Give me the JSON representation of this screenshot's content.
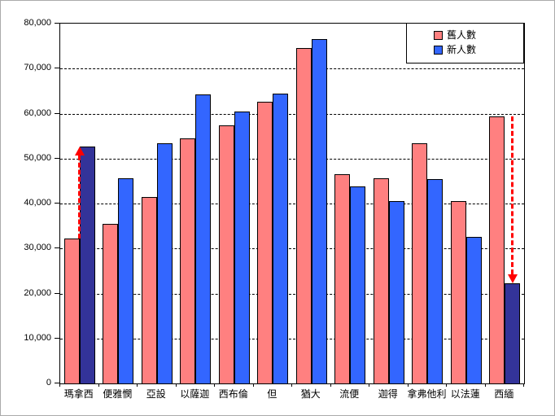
{
  "chart_data": {
    "type": "bar",
    "title": "",
    "categories": [
      "瑪拿西",
      "便雅憫",
      "亞設",
      "以薩迦",
      "西布倫",
      "但",
      "猶大",
      "流便",
      "迦得",
      "拿弗他利",
      "以法蓮",
      "西緬"
    ],
    "series": [
      {
        "name": "舊人數",
        "color": "#FF8080",
        "values": [
          32200,
          35400,
          41500,
          54400,
          57400,
          62700,
          74600,
          46500,
          45650,
          53400,
          40500,
          59300
        ]
      },
      {
        "name": "新人數",
        "color": "#3366FF",
        "values": [
          52700,
          45600,
          53400,
          64300,
          60500,
          64400,
          76500,
          43730,
          40500,
          45400,
          32500,
          22200
        ]
      }
    ],
    "highlight": {
      "series_index": 1,
      "category_indexes": [
        0,
        11
      ],
      "color": "#333399"
    },
    "annotations": [
      {
        "type": "arrow",
        "direction": "up",
        "category_index": 0,
        "from": 32200,
        "to": 52700,
        "color": "#FF0000",
        "style": "dashed"
      },
      {
        "type": "arrow",
        "direction": "down",
        "category_index": 11,
        "from": 59300,
        "to": 22200,
        "color": "#FF0000",
        "style": "dashed"
      }
    ],
    "xlabel": "",
    "ylabel": "",
    "ylim": [
      0,
      80000
    ],
    "ytick_step": 10000,
    "ytick_labels": [
      "0",
      "10,000",
      "20,000",
      "30,000",
      "40,000",
      "50,000",
      "60,000",
      "70,000",
      "80,000"
    ],
    "grid": "horizontal-dashed",
    "legend_position": "top-right-inside"
  },
  "legend": {
    "items": [
      {
        "label": "舊人數",
        "color": "#FF8080"
      },
      {
        "label": "新人數",
        "color": "#3366FF"
      }
    ]
  },
  "colors": {
    "old_series": "#FF8080",
    "new_series": "#3366FF",
    "highlight_navy": "#333399",
    "arrow_red": "#FF0000",
    "axis": "#000000",
    "chart_border": "#AAAAAA",
    "background": "#FFFFFF"
  }
}
